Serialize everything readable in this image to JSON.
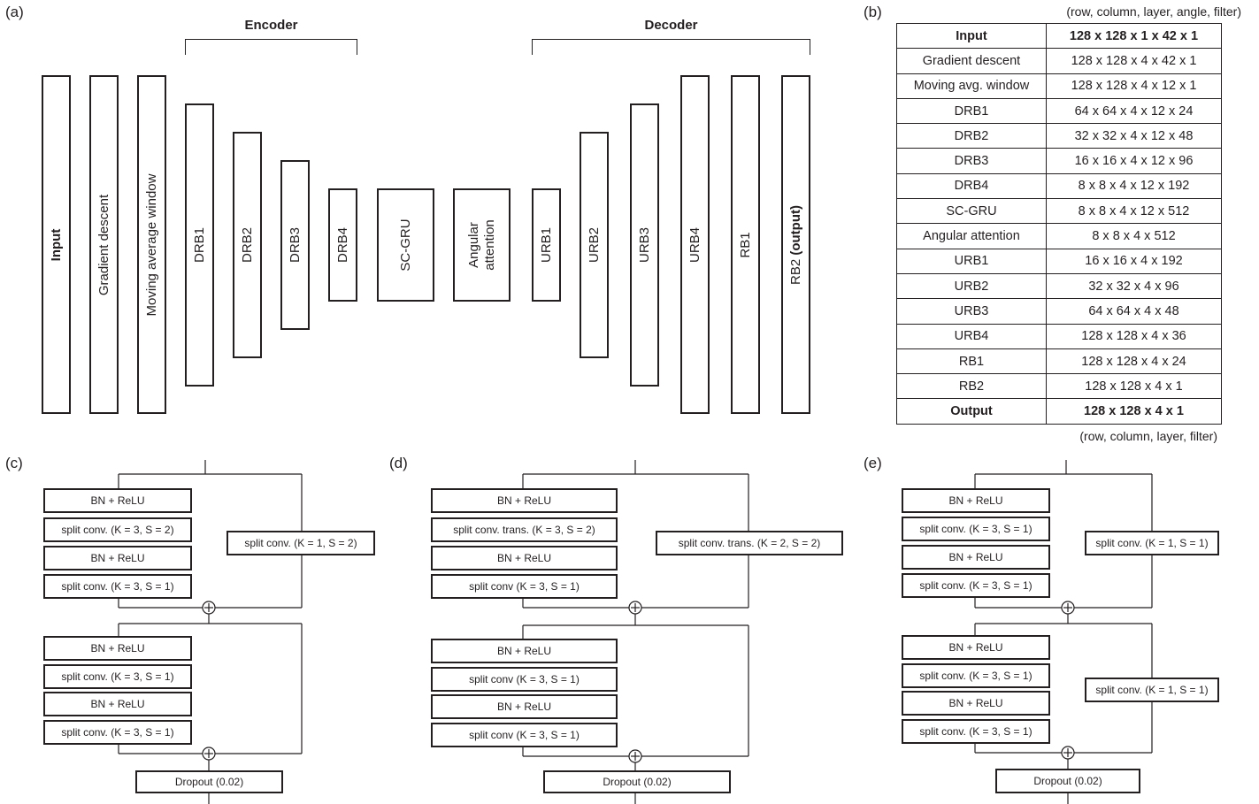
{
  "panel_labels": {
    "a": "(a)",
    "b": "(b)",
    "c": "(c)",
    "d": "(d)",
    "e": "(e)"
  },
  "architecture": {
    "encoder_title": "Encoder",
    "decoder_title": "Decoder",
    "blocks": {
      "input": "Input",
      "gradient_descent": "Gradient descent",
      "moving_average": "Moving average window",
      "drb1": "DRB1",
      "drb2": "DRB2",
      "drb3": "DRB3",
      "drb4": "DRB4",
      "scgru": "SC-GRU",
      "angular_attention_line1": "Angular",
      "angular_attention_line2": "attention",
      "urb1": "URB1",
      "urb2": "URB2",
      "urb3": "URB3",
      "urb4": "URB4",
      "rb1": "RB1",
      "rb2_prefix": "RB2 ",
      "rb2_suffix": "(output)"
    }
  },
  "table": {
    "top_note": "(row, column, layer, angle, filter)",
    "bottom_note": "(row, column, layer, filter)",
    "rows": [
      {
        "layer": "Input",
        "shape": "128 x 128 x 1 x 42 x 1"
      },
      {
        "layer": "Gradient descent",
        "shape": "128 x 128 x 4 x 42 x 1"
      },
      {
        "layer": "Moving avg. window",
        "shape": "128 x 128 x 4 x 12 x 1"
      },
      {
        "layer": "DRB1",
        "shape": "64 x 64 x 4 x 12 x 24"
      },
      {
        "layer": "DRB2",
        "shape": "32 x 32 x 4 x 12 x 48"
      },
      {
        "layer": "DRB3",
        "shape": "16 x 16 x 4 x 12 x 96"
      },
      {
        "layer": "DRB4",
        "shape": "8 x 8 x 4 x 12 x 192"
      },
      {
        "layer": "SC-GRU",
        "shape": "8 x 8 x 4 x 12 x 512"
      },
      {
        "layer": "Angular attention",
        "shape": "8 x 8 x 4 x 512"
      },
      {
        "layer": "URB1",
        "shape": "16 x 16 x 4 x 192"
      },
      {
        "layer": "URB2",
        "shape": "32 x 32 x 4 x 96"
      },
      {
        "layer": "URB3",
        "shape": "64 x 64 x 4 x 48"
      },
      {
        "layer": "URB4",
        "shape": "128 x 128 x 4 x 36"
      },
      {
        "layer": "RB1",
        "shape": "128 x 128 x 4 x 24"
      },
      {
        "layer": "RB2",
        "shape": "128 x 128 x 4 x 1"
      },
      {
        "layer": "Output",
        "shape": "128 x 128 x 4 x 1"
      }
    ]
  },
  "block_c": {
    "bn_relu": "BN + ReLU",
    "conv_first": "split conv. (K = 3, S = 2)",
    "conv_s1": "split conv. (K = 3, S = 1)",
    "skip": "split conv. (K = 1, S = 2)",
    "dropout": "Dropout (0.02)"
  },
  "block_d": {
    "bn_relu": "BN + ReLU",
    "conv_first": "split conv. trans. (K = 3, S = 2)",
    "conv_s1": "split conv (K = 3, S = 1)",
    "skip": "split conv. trans. (K = 2, S = 2)",
    "dropout": "Dropout (0.02)"
  },
  "block_e": {
    "bn_relu": "BN + ReLU",
    "conv_s1": "split conv. (K = 3, S = 1)",
    "skip": "split conv. (K = 1, S = 1)",
    "dropout": "Dropout (0.02)"
  }
}
